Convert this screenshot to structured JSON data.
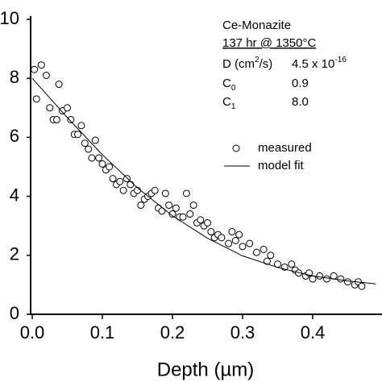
{
  "chart_data": {
    "type": "scatter",
    "xlabel": "Depth (µm)",
    "xlim": [
      0,
      0.5
    ],
    "xticks": [
      {
        "value": 0,
        "label": "0.0"
      },
      0.1,
      0.2,
      0.3,
      0.4
    ],
    "ylim": [
      0,
      10
    ],
    "yticks": [
      0,
      2,
      4,
      6,
      8,
      10
    ],
    "annotations": {
      "sample": "Ce-Monazite",
      "conditions": "137 hr @ 1350°C",
      "d_label": [
        "D (cm",
        "2",
        "/s)"
      ],
      "d_value": [
        "4.5 x 10",
        "-16"
      ],
      "c0_label": [
        "C",
        "0"
      ],
      "c0_value": "0.9",
      "c1_label": [
        "C",
        "1"
      ],
      "c1_value": "8.0"
    },
    "series": [
      {
        "name": "measured",
        "kind": "scatter",
        "color": "#000000",
        "x": [
          0.003,
          0.006,
          0.013,
          0.02,
          0.025,
          0.03,
          0.035,
          0.038,
          0.043,
          0.05,
          0.055,
          0.06,
          0.065,
          0.07,
          0.075,
          0.08,
          0.085,
          0.09,
          0.095,
          0.1,
          0.105,
          0.11,
          0.115,
          0.12,
          0.125,
          0.13,
          0.135,
          0.14,
          0.145,
          0.15,
          0.155,
          0.16,
          0.165,
          0.17,
          0.175,
          0.18,
          0.185,
          0.19,
          0.195,
          0.2,
          0.205,
          0.21,
          0.215,
          0.22,
          0.225,
          0.23,
          0.235,
          0.24,
          0.245,
          0.25,
          0.255,
          0.26,
          0.265,
          0.27,
          0.28,
          0.285,
          0.29,
          0.295,
          0.3,
          0.31,
          0.32,
          0.33,
          0.335,
          0.34,
          0.35,
          0.36,
          0.37,
          0.375,
          0.38,
          0.39,
          0.395,
          0.4,
          0.41,
          0.42,
          0.43,
          0.44,
          0.45,
          0.46,
          0.465,
          0.47
        ],
        "values": [
          8.3,
          7.3,
          8.45,
          8.1,
          7.0,
          6.6,
          6.6,
          7.8,
          6.9,
          7.0,
          6.6,
          6.1,
          6.1,
          6.4,
          5.8,
          5.6,
          5.3,
          5.9,
          5.3,
          5.1,
          4.9,
          5.0,
          4.6,
          4.4,
          4.5,
          4.2,
          4.6,
          4.4,
          4.1,
          4.2,
          3.7,
          3.9,
          4.0,
          4.1,
          4.2,
          3.6,
          3.5,
          4.1,
          3.7,
          3.4,
          3.6,
          3.3,
          3.3,
          4.1,
          3.4,
          3.7,
          3.1,
          3.2,
          3.0,
          3.1,
          2.8,
          2.6,
          2.7,
          2.6,
          2.4,
          2.8,
          2.5,
          2.7,
          2.3,
          2.4,
          2.1,
          2.2,
          1.8,
          2.0,
          1.7,
          1.6,
          1.7,
          1.5,
          1.4,
          1.3,
          1.4,
          1.2,
          1.3,
          1.2,
          1.3,
          1.2,
          1.1,
          1.0,
          1.1,
          0.95
        ]
      },
      {
        "name": "model fit",
        "kind": "line",
        "color": "#000000",
        "x": [
          0,
          0.05,
          0.1,
          0.15,
          0.2,
          0.25,
          0.3,
          0.35,
          0.4,
          0.45,
          0.49
        ],
        "values": [
          8.0,
          6.67,
          5.41,
          4.29,
          3.34,
          2.58,
          1.98,
          1.59,
          1.3,
          1.13,
          1.03
        ]
      }
    ]
  }
}
